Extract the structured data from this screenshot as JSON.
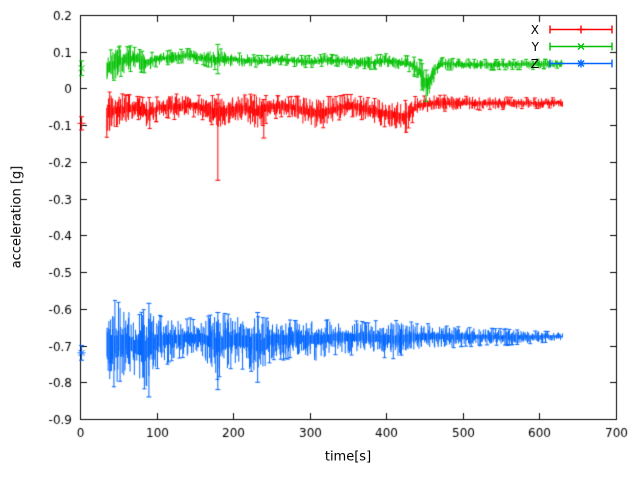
{
  "page": {
    "background": "#ffffff",
    "text_color": "#000000"
  },
  "chart_data": {
    "type": "scatter",
    "style": "errorbars",
    "title": "",
    "xlabel": "time[s]",
    "ylabel": "acceleration [g]",
    "xlim": [
      0,
      700
    ],
    "ylim": [
      -0.9,
      0.2
    ],
    "xtick_step": 100,
    "ytick_step": 0.1,
    "grid": false,
    "legend_position": "top-right",
    "axis_color": "#000000",
    "series": [
      {
        "name": "X",
        "color": "#ff0000",
        "marker": "plus",
        "initial_point": {
          "t": 2,
          "y": -0.095,
          "err": 0.018
        },
        "band": [
          [
            35,
            -0.135,
            -0.005
          ],
          [
            45,
            -0.11,
            -0.01
          ],
          [
            60,
            -0.1,
            -0.015
          ],
          [
            75,
            -0.085,
            -0.02
          ],
          [
            90,
            -0.115,
            -0.02
          ],
          [
            105,
            -0.08,
            -0.02
          ],
          [
            125,
            -0.085,
            -0.015
          ],
          [
            145,
            -0.075,
            -0.015
          ],
          [
            165,
            -0.09,
            -0.02
          ],
          [
            180,
            -0.115,
            -0.015
          ],
          [
            195,
            -0.1,
            -0.02
          ],
          [
            215,
            -0.09,
            -0.015
          ],
          [
            230,
            -0.115,
            -0.015
          ],
          [
            250,
            -0.085,
            -0.015
          ],
          [
            270,
            -0.075,
            -0.02
          ],
          [
            290,
            -0.1,
            -0.02
          ],
          [
            310,
            -0.115,
            -0.02
          ],
          [
            330,
            -0.1,
            -0.02
          ],
          [
            350,
            -0.075,
            -0.015
          ],
          [
            370,
            -0.09,
            -0.02
          ],
          [
            390,
            -0.105,
            -0.025
          ],
          [
            410,
            -0.115,
            -0.03
          ],
          [
            425,
            -0.125,
            -0.03
          ],
          [
            440,
            -0.075,
            -0.02
          ],
          [
            460,
            -0.065,
            -0.015
          ],
          [
            500,
            -0.06,
            -0.02
          ],
          [
            550,
            -0.058,
            -0.022
          ],
          [
            600,
            -0.055,
            -0.025
          ],
          [
            630,
            -0.052,
            -0.025
          ]
        ],
        "spikes": [
          [
            180,
            -0.25,
            -0.04
          ],
          [
            240,
            -0.135,
            -0.03
          ]
        ]
      },
      {
        "name": "Y",
        "color": "#00c000",
        "marker": "cross",
        "initial_point": {
          "t": 2,
          "y": 0.055,
          "err": 0.02
        },
        "band": [
          [
            35,
            0.01,
            0.1
          ],
          [
            45,
            0.02,
            0.115
          ],
          [
            55,
            0.03,
            0.12
          ],
          [
            70,
            0.05,
            0.115
          ],
          [
            85,
            0.04,
            0.1
          ],
          [
            100,
            0.06,
            0.1
          ],
          [
            120,
            0.065,
            0.105
          ],
          [
            140,
            0.07,
            0.11
          ],
          [
            160,
            0.065,
            0.1
          ],
          [
            180,
            0.045,
            0.11
          ],
          [
            200,
            0.06,
            0.1
          ],
          [
            220,
            0.055,
            0.095
          ],
          [
            240,
            0.06,
            0.09
          ],
          [
            260,
            0.065,
            0.095
          ],
          [
            280,
            0.06,
            0.09
          ],
          [
            300,
            0.055,
            0.09
          ],
          [
            320,
            0.06,
            0.095
          ],
          [
            340,
            0.06,
            0.09
          ],
          [
            360,
            0.055,
            0.09
          ],
          [
            380,
            0.05,
            0.09
          ],
          [
            400,
            0.055,
            0.095
          ],
          [
            420,
            0.05,
            0.09
          ],
          [
            435,
            0.04,
            0.088
          ],
          [
            445,
            0.0,
            0.08
          ],
          [
            452,
            -0.035,
            0.05
          ],
          [
            458,
            -0.02,
            0.06
          ],
          [
            465,
            0.03,
            0.08
          ],
          [
            475,
            0.05,
            0.085
          ],
          [
            500,
            0.05,
            0.08
          ],
          [
            550,
            0.05,
            0.08
          ],
          [
            600,
            0.052,
            0.08
          ],
          [
            630,
            0.055,
            0.08
          ]
        ],
        "spikes": [
          [
            180,
            0.04,
            0.12
          ],
          [
            452,
            -0.035,
            0.05
          ]
        ]
      },
      {
        "name": "Z",
        "color": "#0066ff",
        "marker": "asterisk",
        "initial_point": {
          "t": 2,
          "y": -0.72,
          "err": 0.02
        },
        "band": [
          [
            35,
            -0.8,
            -0.59
          ],
          [
            45,
            -0.82,
            -0.575
          ],
          [
            55,
            -0.8,
            -0.58
          ],
          [
            65,
            -0.785,
            -0.6
          ],
          [
            75,
            -0.8,
            -0.615
          ],
          [
            90,
            -0.83,
            -0.585
          ],
          [
            100,
            -0.765,
            -0.615
          ],
          [
            120,
            -0.745,
            -0.62
          ],
          [
            140,
            -0.735,
            -0.625
          ],
          [
            160,
            -0.74,
            -0.62
          ],
          [
            180,
            -0.8,
            -0.6
          ],
          [
            200,
            -0.76,
            -0.61
          ],
          [
            220,
            -0.775,
            -0.605
          ],
          [
            235,
            -0.79,
            -0.615
          ],
          [
            250,
            -0.745,
            -0.62
          ],
          [
            270,
            -0.74,
            -0.625
          ],
          [
            290,
            -0.735,
            -0.628
          ],
          [
            310,
            -0.75,
            -0.62
          ],
          [
            330,
            -0.725,
            -0.63
          ],
          [
            350,
            -0.73,
            -0.628
          ],
          [
            370,
            -0.72,
            -0.635
          ],
          [
            390,
            -0.73,
            -0.63
          ],
          [
            410,
            -0.74,
            -0.628
          ],
          [
            430,
            -0.72,
            -0.635
          ],
          [
            450,
            -0.712,
            -0.64
          ],
          [
            470,
            -0.71,
            -0.642
          ],
          [
            500,
            -0.705,
            -0.648
          ],
          [
            530,
            -0.7,
            -0.652
          ],
          [
            560,
            -0.7,
            -0.655
          ],
          [
            590,
            -0.695,
            -0.658
          ],
          [
            630,
            -0.688,
            -0.663
          ]
        ],
        "spikes": [
          [
            90,
            -0.84,
            -0.585
          ],
          [
            180,
            -0.82,
            -0.61
          ],
          [
            232,
            -0.8,
            -0.61
          ]
        ]
      }
    ]
  }
}
